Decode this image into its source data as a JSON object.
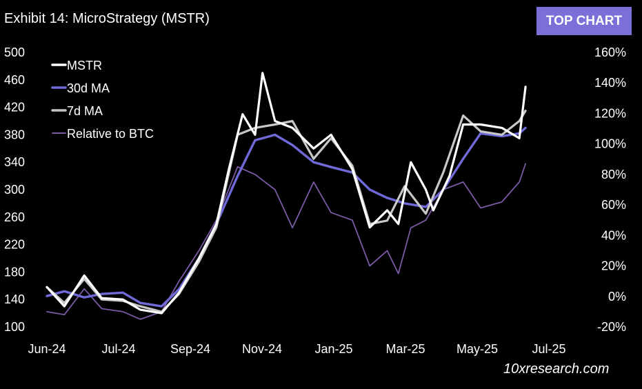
{
  "header": {
    "title": "Exhibit 14: MicroStrategy (MSTR)",
    "badge": "TOP CHART"
  },
  "footer": {
    "source": "10xresearch.com"
  },
  "colors": {
    "mstr": "#ffffff",
    "ma30": "#6f6ad8",
    "ma7": "#c8c8c8",
    "relative": "#7b5aa6",
    "background": "#000000"
  },
  "chart_data": {
    "type": "line",
    "title": "Exhibit 14: MicroStrategy (MSTR)",
    "x_ticks": [
      "Jun-24",
      "Jul-24",
      "Sep-24",
      "Nov-24",
      "Jan-25",
      "Mar-25",
      "May-25",
      "Jul-25"
    ],
    "y_left_ticks": [
      "500",
      "460",
      "420",
      "380",
      "340",
      "300",
      "260",
      "220",
      "180",
      "140",
      "100"
    ],
    "y_right_ticks": [
      "160%",
      "140%",
      "120%",
      "100%",
      "80%",
      "60%",
      "40%",
      "20%",
      "0%",
      "-20%"
    ],
    "ylim_left": [
      100,
      500
    ],
    "ylim_right": [
      -20,
      160
    ],
    "xlim": [
      "2024-06-01",
      "2025-07-01"
    ],
    "legend_position": "top-left",
    "grid": false,
    "series": [
      {
        "name": "MSTR",
        "axis": "left",
        "x": [
          "2024-06-01",
          "2024-06-15",
          "2024-07-01",
          "2024-07-15",
          "2024-08-01",
          "2024-08-15",
          "2024-09-01",
          "2024-09-15",
          "2024-10-01",
          "2024-10-15",
          "2024-10-25",
          "2024-11-05",
          "2024-11-15",
          "2024-11-21",
          "2024-12-01",
          "2024-12-15",
          "2025-01-01",
          "2025-01-15",
          "2025-02-01",
          "2025-02-15",
          "2025-03-01",
          "2025-03-10",
          "2025-03-20",
          "2025-04-01",
          "2025-04-07",
          "2025-04-20",
          "2025-05-01",
          "2025-05-15",
          "2025-06-01",
          "2025-06-15",
          "2025-06-20"
        ],
        "values": [
          158,
          130,
          175,
          142,
          140,
          125,
          120,
          150,
          200,
          250,
          330,
          410,
          380,
          470,
          400,
          390,
          360,
          380,
          330,
          245,
          270,
          250,
          340,
          300,
          270,
          320,
          395,
          395,
          390,
          375,
          450
        ]
      },
      {
        "name": "30d MA",
        "axis": "left",
        "x": [
          "2024-06-01",
          "2024-06-15",
          "2024-07-01",
          "2024-07-15",
          "2024-08-01",
          "2024-08-15",
          "2024-09-01",
          "2024-09-15",
          "2024-10-01",
          "2024-10-15",
          "2024-11-01",
          "2024-11-15",
          "2024-12-01",
          "2024-12-15",
          "2025-01-01",
          "2025-01-15",
          "2025-02-01",
          "2025-02-15",
          "2025-03-01",
          "2025-03-15",
          "2025-04-01",
          "2025-04-15",
          "2025-05-01",
          "2025-05-15",
          "2025-06-01",
          "2025-06-15",
          "2025-06-20"
        ],
        "values": [
          145,
          152,
          143,
          148,
          150,
          135,
          130,
          155,
          200,
          250,
          320,
          372,
          380,
          365,
          340,
          333,
          325,
          300,
          288,
          280,
          275,
          300,
          345,
          382,
          378,
          382,
          390
        ]
      },
      {
        "name": "7d MA",
        "axis": "left",
        "x": [
          "2024-06-01",
          "2024-06-15",
          "2024-07-01",
          "2024-07-15",
          "2024-08-01",
          "2024-08-15",
          "2024-09-01",
          "2024-09-15",
          "2024-10-01",
          "2024-10-15",
          "2024-11-01",
          "2024-11-15",
          "2024-12-01",
          "2024-12-15",
          "2025-01-01",
          "2025-01-15",
          "2025-02-01",
          "2025-02-15",
          "2025-03-01",
          "2025-03-15",
          "2025-04-01",
          "2025-04-15",
          "2025-05-01",
          "2025-05-15",
          "2025-06-01",
          "2025-06-15",
          "2025-06-20"
        ],
        "values": [
          158,
          135,
          170,
          140,
          138,
          130,
          122,
          148,
          195,
          245,
          380,
          390,
          395,
          400,
          345,
          375,
          335,
          250,
          255,
          305,
          265,
          325,
          408,
          385,
          380,
          400,
          415
        ]
      },
      {
        "name": "Relative to BTC",
        "axis": "right",
        "x": [
          "2024-06-01",
          "2024-06-15",
          "2024-07-01",
          "2024-07-15",
          "2024-08-01",
          "2024-08-15",
          "2024-09-01",
          "2024-09-15",
          "2024-10-01",
          "2024-10-15",
          "2024-11-01",
          "2024-11-15",
          "2024-12-01",
          "2024-12-15",
          "2025-01-01",
          "2025-01-15",
          "2025-02-01",
          "2025-02-15",
          "2025-03-01",
          "2025-03-10",
          "2025-03-20",
          "2025-04-01",
          "2025-04-15",
          "2025-05-01",
          "2025-05-15",
          "2025-06-01",
          "2025-06-15",
          "2025-06-20"
        ],
        "values": [
          -10,
          -12,
          5,
          -8,
          -10,
          -15,
          -10,
          10,
          30,
          50,
          85,
          80,
          70,
          45,
          75,
          55,
          50,
          20,
          30,
          15,
          45,
          50,
          70,
          75,
          58,
          62,
          75,
          87
        ]
      }
    ]
  }
}
